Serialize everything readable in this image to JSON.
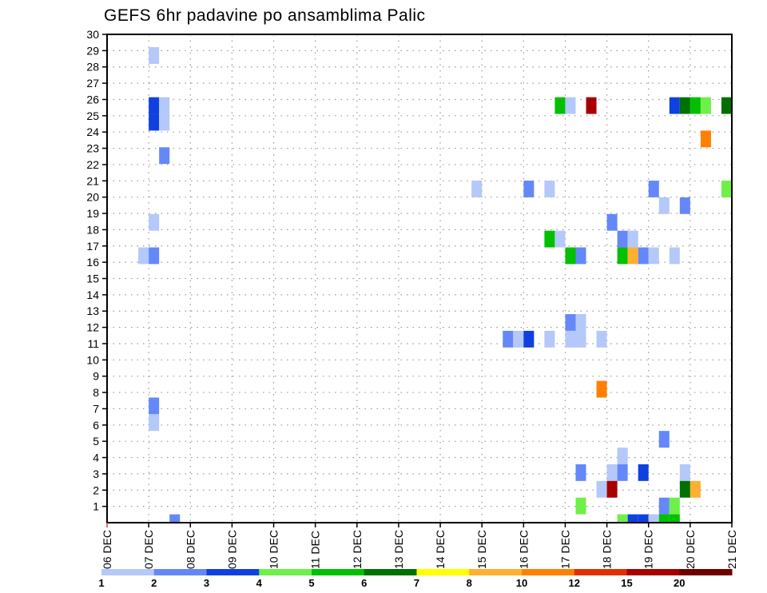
{
  "chart_data": {
    "type": "heatmap",
    "title": "GEFS 6hr padavine po ansamblima Palic",
    "xlabel": "",
    "ylabel": "",
    "x_step_hours": 6,
    "xlim": [
      0,
      60
    ],
    "x_tick_labels": [
      "06 DEC",
      "07 DEC",
      "08 DEC",
      "09 DEC",
      "10 DEC",
      "11 DEC",
      "12 DEC",
      "13 DEC",
      "14 DEC",
      "15 DEC",
      "16 DEC",
      "17 DEC",
      "18 DEC",
      "19 DEC",
      "20 DEC",
      "21 DEC"
    ],
    "ylim": [
      0,
      30
    ],
    "y_tick_labels": [
      "1",
      "2",
      "3",
      "4",
      "5",
      "6",
      "7",
      "8",
      "9",
      "10",
      "11",
      "12",
      "13",
      "14",
      "15",
      "16",
      "17",
      "18",
      "19",
      "20",
      "21",
      "22",
      "23",
      "24",
      "25",
      "26",
      "27",
      "28",
      "29",
      "30"
    ],
    "grid": true,
    "legend": {
      "placement": "bottom",
      "levels": [
        "1",
        "2",
        "3",
        "4",
        "5",
        "6",
        "7",
        "8",
        "10",
        "12",
        "15",
        "20"
      ],
      "colors": [
        "#b4c8fa",
        "#6488f8",
        "#1040e0",
        "#6ef048",
        "#00c000",
        "#007000",
        "#ffff00",
        "#ffb030",
        "#ff8000",
        "#e03000",
        "#a80000",
        "#700000"
      ]
    },
    "cells_note": "each cell: [time step index (6h from 06 DEC 00), ensemble member, colour bin index]",
    "cells": [
      [
        4,
        28,
        0
      ],
      [
        4,
        25,
        2
      ],
      [
        4,
        24,
        2
      ],
      [
        5,
        25,
        0
      ],
      [
        5,
        24,
        0
      ],
      [
        5,
        22,
        1
      ],
      [
        4,
        18,
        0
      ],
      [
        3,
        16,
        0
      ],
      [
        4,
        16,
        1
      ],
      [
        4,
        7,
        1
      ],
      [
        4,
        6,
        0
      ],
      [
        6,
        0,
        1
      ],
      [
        43,
        25,
        4
      ],
      [
        44,
        25,
        0
      ],
      [
        46,
        25,
        10
      ],
      [
        54,
        25,
        2
      ],
      [
        55,
        25,
        5
      ],
      [
        56,
        25,
        4
      ],
      [
        57,
        25,
        3
      ],
      [
        59,
        25,
        5
      ],
      [
        57,
        23,
        8
      ],
      [
        35,
        20,
        0
      ],
      [
        40,
        20,
        1
      ],
      [
        42,
        20,
        0
      ],
      [
        52,
        20,
        1
      ],
      [
        59,
        20,
        3
      ],
      [
        53,
        19,
        0
      ],
      [
        55,
        19,
        1
      ],
      [
        48,
        18,
        1
      ],
      [
        42,
        17,
        4
      ],
      [
        43,
        17,
        0
      ],
      [
        49,
        17,
        1
      ],
      [
        50,
        17,
        0
      ],
      [
        44,
        16,
        4
      ],
      [
        45,
        16,
        1
      ],
      [
        49,
        16,
        4
      ],
      [
        50,
        16,
        7
      ],
      [
        51,
        16,
        1
      ],
      [
        52,
        16,
        0
      ],
      [
        54,
        16,
        0
      ],
      [
        44,
        12,
        1
      ],
      [
        45,
        12,
        0
      ],
      [
        38,
        11,
        1
      ],
      [
        39,
        11,
        0
      ],
      [
        40,
        11,
        2
      ],
      [
        42,
        11,
        0
      ],
      [
        44,
        11,
        0
      ],
      [
        45,
        11,
        0
      ],
      [
        47,
        11,
        0
      ],
      [
        47,
        8,
        8
      ],
      [
        53,
        5,
        1
      ],
      [
        49,
        4,
        0
      ],
      [
        45,
        3,
        1
      ],
      [
        48,
        3,
        0
      ],
      [
        49,
        3,
        1
      ],
      [
        51,
        3,
        2
      ],
      [
        55,
        3,
        0
      ],
      [
        47,
        2,
        0
      ],
      [
        48,
        2,
        10
      ],
      [
        55,
        2,
        5
      ],
      [
        56,
        2,
        7
      ],
      [
        45,
        1,
        3
      ],
      [
        53,
        1,
        1
      ],
      [
        54,
        1,
        3
      ],
      [
        49,
        0,
        3
      ],
      [
        50,
        0,
        2
      ],
      [
        51,
        0,
        2
      ],
      [
        52,
        0,
        0
      ],
      [
        53,
        0,
        4
      ],
      [
        54,
        0,
        4
      ]
    ]
  }
}
